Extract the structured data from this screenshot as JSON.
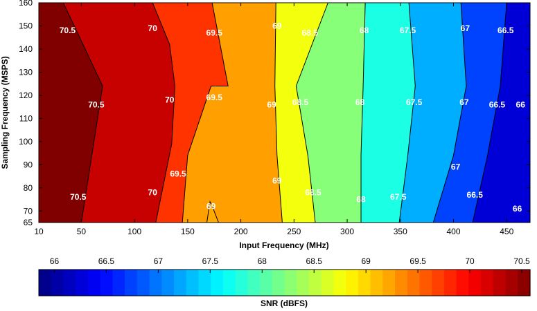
{
  "chart_data": {
    "type": "contour",
    "x_label": "Input Frequency (MHz)",
    "y_label": "Sampling Frequency (MSPS)",
    "xlim": [
      10,
      472
    ],
    "ylim": [
      65,
      160
    ],
    "x_ticks": [
      10,
      50,
      100,
      150,
      200,
      250,
      300,
      350,
      400,
      450
    ],
    "y_ticks": [
      65,
      70,
      80,
      90,
      100,
      110,
      120,
      130,
      140,
      150,
      160
    ],
    "colorbar": {
      "label": "SNR (dBFS)",
      "range": [
        65.85,
        70.58
      ],
      "ticks": [
        "66",
        "66.5",
        "67",
        "67.5",
        "68",
        "68.5",
        "69",
        "69.5",
        "70",
        "70.5"
      ]
    },
    "contour_levels": [
      66,
      66.5,
      67,
      67.5,
      68,
      68.5,
      69,
      69.5,
      70,
      70.5
    ],
    "contour_lines": [
      {
        "level": 70.5,
        "points": [
          [
            33,
            160
          ],
          [
            70,
            124
          ],
          [
            50,
            65
          ]
        ]
      },
      {
        "level": 70,
        "points": [
          [
            117,
            160
          ],
          [
            133,
            142
          ],
          [
            138,
            124
          ],
          [
            135,
            99
          ],
          [
            120,
            65
          ]
        ]
      },
      {
        "level": 69.5,
        "points": [
          [
            173,
            160
          ],
          [
            188,
            124
          ],
          [
            172,
            124
          ],
          [
            150,
            94
          ],
          [
            145,
            65
          ]
        ]
      },
      {
        "level": 69,
        "points": [
          [
            233,
            160
          ],
          [
            232,
            124
          ],
          [
            234,
            94
          ],
          [
            239,
            65
          ]
        ]
      },
      {
        "level": 68.5,
        "points": [
          [
            282,
            160
          ],
          [
            252,
            124
          ],
          [
            263,
            94
          ],
          [
            270,
            65
          ]
        ]
      },
      {
        "level": 68,
        "points": [
          [
            317,
            160
          ],
          [
            315,
            124
          ],
          [
            313,
            94
          ],
          [
            313,
            65
          ]
        ]
      },
      {
        "level": 67.5,
        "points": [
          [
            358,
            160
          ],
          [
            364,
            124
          ],
          [
            357,
            94
          ],
          [
            349,
            65
          ]
        ]
      },
      {
        "level": 67,
        "points": [
          [
            407,
            160
          ],
          [
            412,
            124
          ],
          [
            400,
            94
          ],
          [
            381,
            65
          ]
        ]
      },
      {
        "level": 66.5,
        "points": [
          [
            450,
            160
          ],
          [
            444,
            124
          ],
          [
            432,
            94
          ],
          [
            418,
            65
          ]
        ]
      },
      {
        "level": 66,
        "points": [
          [
            472,
            160
          ],
          [
            472,
            65
          ]
        ]
      }
    ],
    "island": {
      "level": 69,
      "points": [
        [
          168,
          65
        ],
        [
          171,
          74
        ],
        [
          174,
          71
        ],
        [
          179,
          65
        ]
      ]
    },
    "contour_labels": [
      {
        "text": "70.5",
        "x": 37,
        "y": 148
      },
      {
        "text": "70",
        "x": 117,
        "y": 149
      },
      {
        "text": "69.5",
        "x": 175,
        "y": 147
      },
      {
        "text": "69",
        "x": 234,
        "y": 150
      },
      {
        "text": "68.5",
        "x": 265,
        "y": 147
      },
      {
        "text": "68",
        "x": 316,
        "y": 148
      },
      {
        "text": "67.5",
        "x": 357,
        "y": 148
      },
      {
        "text": "67",
        "x": 411,
        "y": 149
      },
      {
        "text": "66.5",
        "x": 449,
        "y": 148
      },
      {
        "text": "70.5",
        "x": 64,
        "y": 116
      },
      {
        "text": "70",
        "x": 133,
        "y": 118
      },
      {
        "text": "69.5",
        "x": 175,
        "y": 119
      },
      {
        "text": "69",
        "x": 229,
        "y": 116
      },
      {
        "text": "68.5",
        "x": 256,
        "y": 117
      },
      {
        "text": "68",
        "x": 312,
        "y": 117
      },
      {
        "text": "67.5",
        "x": 363,
        "y": 117
      },
      {
        "text": "67",
        "x": 410,
        "y": 117
      },
      {
        "text": "66.5",
        "x": 441,
        "y": 116
      },
      {
        "text": "66",
        "x": 463,
        "y": 116
      },
      {
        "text": "67",
        "x": 402,
        "y": 89
      },
      {
        "text": "69.5",
        "x": 141,
        "y": 86
      },
      {
        "text": "70.5",
        "x": 47,
        "y": 76
      },
      {
        "text": "70",
        "x": 117,
        "y": 78
      },
      {
        "text": "69",
        "x": 234,
        "y": 83
      },
      {
        "text": "68.5",
        "x": 268,
        "y": 78
      },
      {
        "text": "68",
        "x": 313,
        "y": 75
      },
      {
        "text": "67.5",
        "x": 348,
        "y": 76
      },
      {
        "text": "66.5",
        "x": 420,
        "y": 77
      },
      {
        "text": "66",
        "x": 460,
        "y": 71
      },
      {
        "text": "69",
        "x": 172,
        "y": 72
      }
    ]
  }
}
